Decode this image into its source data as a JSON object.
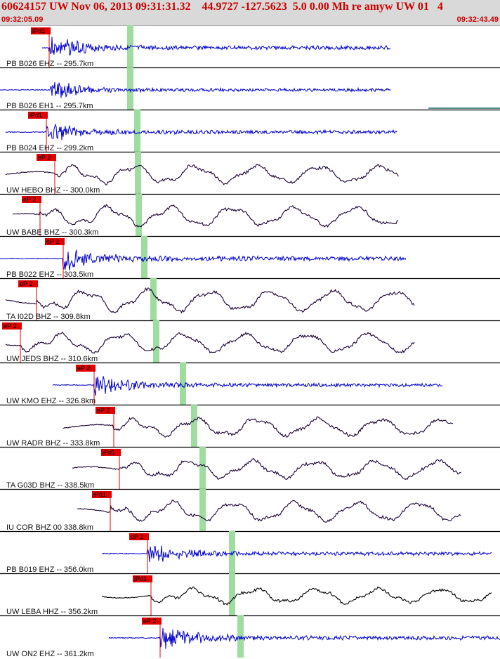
{
  "header": {
    "title": "60624157 UW Nov 06, 2013 09:31:31.32    44.9727 -127.5623  5.0 0.00 Mh re amyw UW 01   4",
    "time_start": "09:32:05.09",
    "time_end": "09:32:43.49"
  },
  "colors": {
    "header_bg": "#d9d9d9",
    "header_text": "#cc0000",
    "blue_trace": "#0000cc",
    "dark_trace": "#1a0033",
    "pick": "#e00000",
    "s_window": "#9fdc9f"
  },
  "traces": [
    {
      "label": "PB B026 EHZ -- 295.7km",
      "pick": "iPd1",
      "color": "blue",
      "style": "hf"
    },
    {
      "label": "PB B026 EH1 -- 295.7km",
      "pick": "",
      "color": "blue",
      "style": "hf"
    },
    {
      "label": "PB B024 EHZ -- 299.2km",
      "pick": "iPd1",
      "color": "blue",
      "style": "hf"
    },
    {
      "label": "UW HEBO BHZ -- 300.0km",
      "pick": "eP 2",
      "color": "dark",
      "style": "lf"
    },
    {
      "label": "UW BABE BHZ -- 300.3km",
      "pick": "eP 2",
      "color": "dark",
      "style": "lf"
    },
    {
      "label": "PB B022 EHZ -- 303.5km",
      "pick": "eP 2",
      "color": "blue",
      "style": "hf"
    },
    {
      "label": "TA I02D BHZ -- 309.8km",
      "pick": "eP 2",
      "color": "dark",
      "style": "lf"
    },
    {
      "label": "UW JEDS BHZ -- 310.6km",
      "pick": "eP 2",
      "color": "dark",
      "style": "lf"
    },
    {
      "label": "UW KMO EHZ -- 326.8km",
      "pick": "eP 2",
      "color": "blue",
      "style": "hf"
    },
    {
      "label": "UW RADR BHZ -- 333.8km",
      "pick": "eP 2",
      "color": "dark",
      "style": "lf"
    },
    {
      "label": "TA G03D BHZ -- 338.5km",
      "pick": "iPd1",
      "color": "dark",
      "style": "lf"
    },
    {
      "label": "IU COR BHZ 00 338.8km",
      "pick": "iPd1",
      "color": "dark",
      "style": "lf"
    },
    {
      "label": "PB B019 EHZ -- 356.0km",
      "pick": "eP 2",
      "color": "blue",
      "style": "hf"
    },
    {
      "label": "UW LEBA HHZ -- 356.2km",
      "pick": "iPd1",
      "color": "black",
      "style": "lf"
    },
    {
      "label": "UW ON2 EHZ -- 361.2km",
      "pick": "eP 2",
      "color": "blue",
      "style": "hf"
    }
  ]
}
